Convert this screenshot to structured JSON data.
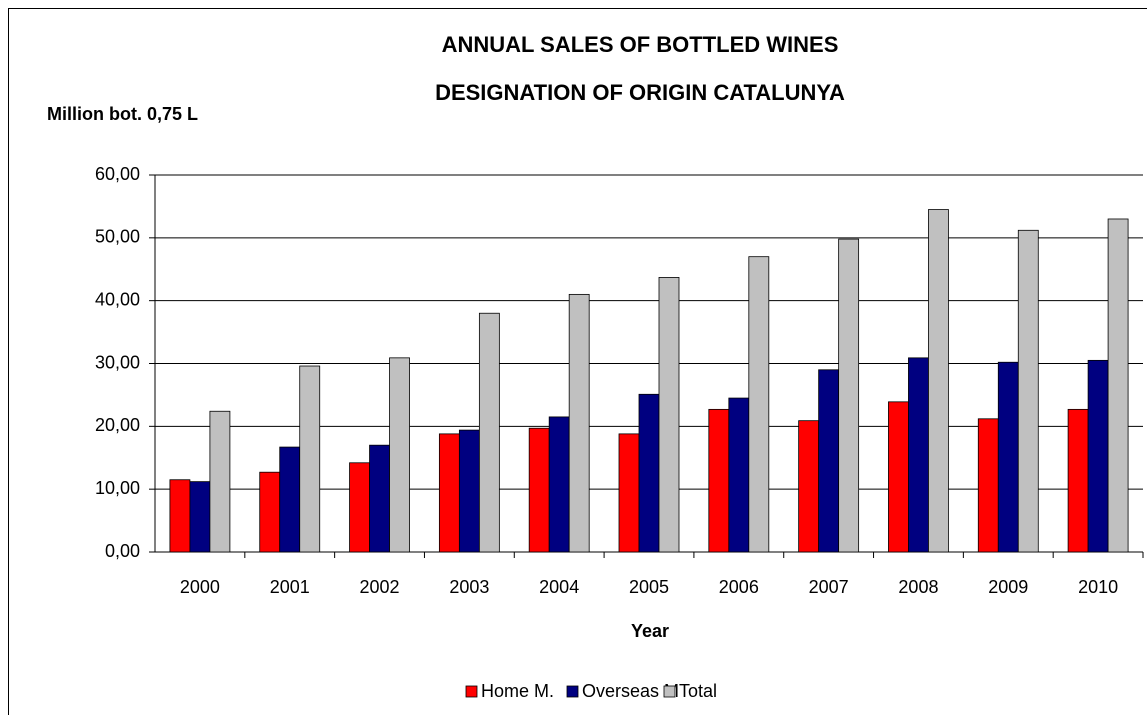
{
  "chart_data": {
    "type": "bar",
    "title": [
      "ANNUAL SALES OF BOTTLED WINES",
      "DESIGNATION OF ORIGIN CATALUNYA"
    ],
    "y_label": "Million bot. 0,75 L",
    "x_label": "Year",
    "categories": [
      "2000",
      "2001",
      "2002",
      "2003",
      "2004",
      "2005",
      "2006",
      "2007",
      "2008",
      "2009",
      "2010"
    ],
    "series": [
      {
        "name": "Home M.",
        "color": "#ff0000",
        "values": [
          11.5,
          12.7,
          14.2,
          18.8,
          19.7,
          18.8,
          22.7,
          20.9,
          23.9,
          21.2,
          22.7
        ]
      },
      {
        "name": "Overseas M",
        "color": "#000080",
        "values": [
          11.2,
          16.7,
          17.0,
          19.4,
          21.5,
          25.1,
          24.5,
          29.0,
          30.9,
          30.2,
          30.5
        ]
      },
      {
        "name": "Total",
        "color": "#c0c0c0",
        "values": [
          22.4,
          29.6,
          30.9,
          38.0,
          41.0,
          43.7,
          47.0,
          49.8,
          54.5,
          51.2,
          53.0
        ]
      }
    ],
    "ylim": [
      0,
      60
    ],
    "yticks": [
      {
        "value": 0,
        "label": "0,00"
      },
      {
        "value": 10,
        "label": "10,00"
      },
      {
        "value": 20,
        "label": "20,00"
      },
      {
        "value": 30,
        "label": "30,00"
      },
      {
        "value": 40,
        "label": "40,00"
      },
      {
        "value": 50,
        "label": "50,00"
      },
      {
        "value": 60,
        "label": "60,00"
      }
    ],
    "grid": true,
    "legend": "bottom"
  }
}
